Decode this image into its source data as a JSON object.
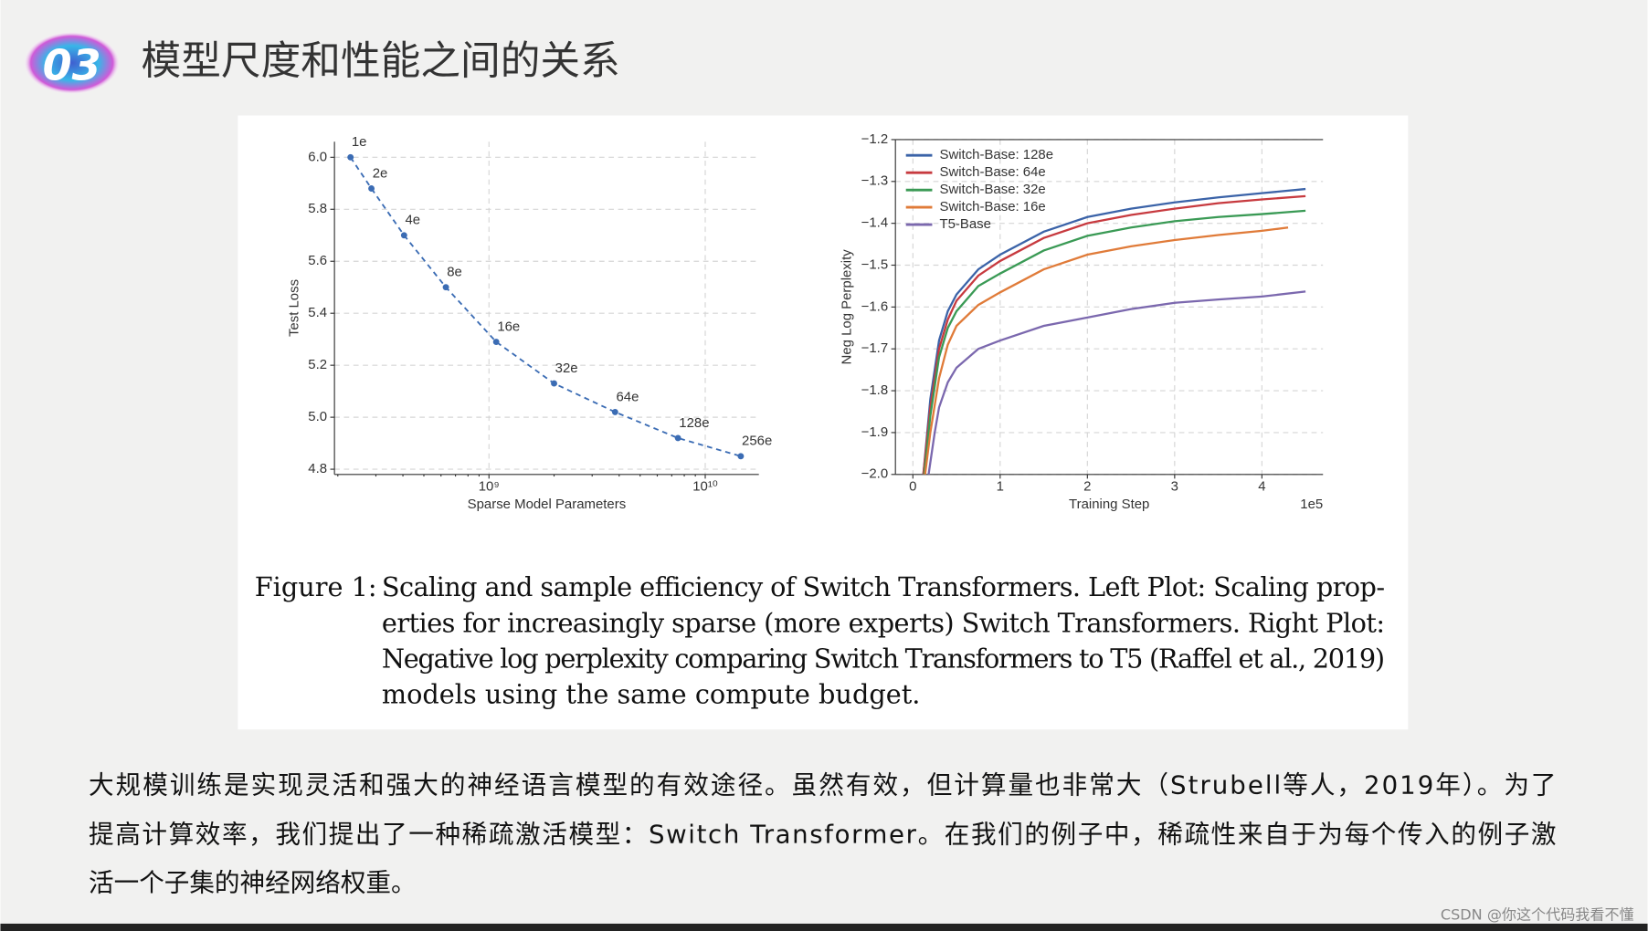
{
  "badge": "03",
  "title": "模型尺度和性能之间的关系",
  "chart_data": [
    {
      "type": "line",
      "ylabel": "Test Loss",
      "xlabel": "Sparse Model Parameters",
      "xscale": "log",
      "grid": true,
      "color": "#3b6cb4",
      "linestyle": "dashed",
      "x": [
        229000000,
        286000000,
        405000000,
        632000000,
        1080000000,
        2000000000,
        3830000000,
        7480000000,
        14600000000
      ],
      "values": [
        6.0,
        5.88,
        5.7,
        5.5,
        5.29,
        5.13,
        5.02,
        4.92,
        4.85
      ],
      "point_labels": [
        "1e",
        "2e",
        "4e",
        "8e",
        "16e",
        "32e",
        "64e",
        "128e",
        "256e"
      ],
      "xlim": [
        193000000,
        17700000000
      ],
      "xticks": [
        {
          "value": 1000000000,
          "label": "10⁹"
        },
        {
          "value": 10000000000,
          "label": "10¹⁰"
        }
      ],
      "ylim": [
        4.78,
        6.06
      ],
      "yticks": [
        {
          "value": 4.8,
          "label": "4.8"
        },
        {
          "value": 5.0,
          "label": "5.0"
        },
        {
          "value": 5.2,
          "label": "5.2"
        },
        {
          "value": 5.4,
          "label": "5.4"
        },
        {
          "value": 5.6,
          "label": "5.6"
        },
        {
          "value": 5.8,
          "label": "5.8"
        },
        {
          "value": 6.0,
          "label": "6.0"
        }
      ]
    },
    {
      "type": "line",
      "ylabel": "Neg Log Perplexity",
      "xlabel": "Training Step",
      "x_offset_label": "1e5",
      "grid": true,
      "legend": "upper-left",
      "xlim": [
        -0.2,
        4.7
      ],
      "xticks": [
        0,
        1,
        2,
        3,
        4
      ],
      "ylim": [
        -2.0,
        -1.2
      ],
      "yticks": [
        {
          "value": -2.0,
          "label": "−2.0"
        },
        {
          "value": -1.9,
          "label": "−1.9"
        },
        {
          "value": -1.8,
          "label": "−1.8"
        },
        {
          "value": -1.7,
          "label": "−1.7"
        },
        {
          "value": -1.6,
          "label": "−1.6"
        },
        {
          "value": -1.5,
          "label": "−1.5"
        },
        {
          "value": -1.4,
          "label": "−1.4"
        },
        {
          "value": -1.3,
          "label": "−1.3"
        },
        {
          "value": -1.2,
          "label": "−1.2"
        }
      ],
      "series": [
        {
          "name": "Switch-Base: 128e",
          "color": "#3b63a8",
          "x": [
            0.12,
            0.2,
            0.3,
            0.4,
            0.5,
            0.75,
            1,
            1.5,
            2,
            2.5,
            3,
            3.5,
            4,
            4.5
          ],
          "values": [
            -2.0,
            -1.82,
            -1.68,
            -1.61,
            -1.57,
            -1.51,
            -1.475,
            -1.42,
            -1.385,
            -1.365,
            -1.35,
            -1.338,
            -1.328,
            -1.318
          ]
        },
        {
          "name": "Switch-Base: 64e",
          "color": "#c73a3f",
          "x": [
            0.12,
            0.2,
            0.3,
            0.4,
            0.5,
            0.75,
            1,
            1.5,
            2,
            2.5,
            3,
            3.5,
            4,
            4.5
          ],
          "values": [
            -2.0,
            -1.84,
            -1.7,
            -1.63,
            -1.585,
            -1.525,
            -1.49,
            -1.435,
            -1.4,
            -1.38,
            -1.365,
            -1.352,
            -1.343,
            -1.335
          ]
        },
        {
          "name": "Switch-Base: 32e",
          "color": "#3a9a55",
          "x": [
            0.13,
            0.2,
            0.3,
            0.4,
            0.5,
            0.75,
            1,
            1.5,
            2,
            2.5,
            3,
            3.5,
            4,
            4.5
          ],
          "values": [
            -2.0,
            -1.86,
            -1.72,
            -1.65,
            -1.61,
            -1.55,
            -1.52,
            -1.465,
            -1.43,
            -1.41,
            -1.395,
            -1.385,
            -1.378,
            -1.37
          ]
        },
        {
          "name": "Switch-Base: 16e",
          "color": "#e07b39",
          "x": [
            0.14,
            0.2,
            0.3,
            0.4,
            0.5,
            0.75,
            1,
            1.5,
            2,
            2.5,
            3,
            3.5,
            4,
            4.3
          ],
          "values": [
            -2.0,
            -1.9,
            -1.77,
            -1.69,
            -1.645,
            -1.595,
            -1.565,
            -1.51,
            -1.475,
            -1.455,
            -1.44,
            -1.428,
            -1.418,
            -1.41
          ]
        },
        {
          "name": "T5-Base",
          "color": "#7b68ae",
          "x": [
            0.18,
            0.25,
            0.3,
            0.4,
            0.5,
            0.75,
            1,
            1.5,
            2,
            2.5,
            3,
            3.5,
            4,
            4.5
          ],
          "values": [
            -2.0,
            -1.9,
            -1.84,
            -1.78,
            -1.745,
            -1.7,
            -1.68,
            -1.645,
            -1.625,
            -1.605,
            -1.59,
            -1.582,
            -1.575,
            -1.563
          ]
        }
      ]
    }
  ],
  "caption": {
    "label": "Figure 1:",
    "lines": [
      "Scaling and sample efficiency of Switch Transformers. Left Plot: Scaling prop-",
      "erties for increasingly sparse (more experts) Switch Transformers. Right Plot:",
      "Negative log perplexity comparing Switch Transformers to T5 (Raffel et al., 2019)",
      "models using the same compute budget."
    ]
  },
  "body": [
    "大规模训练是实现灵活和强大的神经语言模型的有效途径。虽然有效，但计算量也非常大（Strubell等人，2019年）。为了",
    "提高计算效率，我们提出了一种稀疏激活模型：Switch Transformer。在我们的例子中，稀疏性来自于为每个传入的例子激",
    "活一个子集的神经网络权重。"
  ],
  "watermark": "CSDN @你这个代码我看不懂"
}
